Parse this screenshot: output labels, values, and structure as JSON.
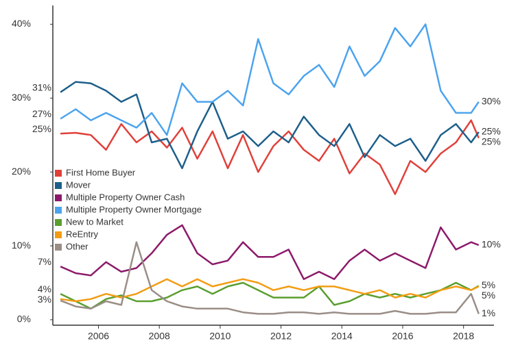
{
  "chart_data": {
    "type": "line",
    "x": [
      2004.75,
      2005.25,
      2005.75,
      2006.25,
      2006.75,
      2007.25,
      2007.75,
      2008.25,
      2008.75,
      2009.25,
      2009.75,
      2010.25,
      2010.75,
      2011.25,
      2011.75,
      2012.25,
      2012.75,
      2013.25,
      2013.75,
      2014.25,
      2014.75,
      2015.25,
      2015.75,
      2016.25,
      2016.75,
      2017.25,
      2017.75,
      2018.25,
      2018.5
    ],
    "xlim": [
      2004.5,
      2019.0
    ],
    "xticks": [
      2006,
      2008,
      2010,
      2012,
      2014,
      2016,
      2018
    ],
    "ylim": [
      0,
      40.5
    ],
    "yticks": [
      {
        "value": 0,
        "label": "0%"
      },
      {
        "value": 10,
        "label": "10%"
      },
      {
        "value": 20,
        "label": "20%"
      },
      {
        "value": 30,
        "label": "30%"
      },
      {
        "value": 40,
        "label": "40%"
      }
    ],
    "series": [
      {
        "name": "First Home Buyer",
        "color": "#e0403a",
        "values": [
          25.2,
          25.3,
          25.0,
          23.0,
          26.5,
          24.0,
          25.5,
          23.3,
          26.0,
          21.8,
          25.5,
          20.5,
          25.0,
          20.0,
          23.5,
          25.5,
          23.0,
          21.5,
          24.5,
          19.8,
          22.5,
          21.0,
          17.0,
          21.5,
          20.0,
          22.5,
          24.0,
          27.0,
          24.6
        ],
        "value_labels": [
          "25%",
          null,
          null,
          null,
          null,
          null,
          null,
          null,
          null,
          null,
          null,
          null,
          null,
          null,
          null,
          null,
          null,
          null,
          null,
          null,
          null,
          null,
          null,
          null,
          null,
          null,
          null,
          null,
          "25%"
        ]
      },
      {
        "name": "Mover",
        "color": "#1d5f8a",
        "values": [
          30.8,
          32.2,
          32.0,
          31.0,
          29.5,
          30.5,
          24.0,
          24.5,
          20.5,
          25.5,
          29.5,
          24.5,
          25.5,
          23.5,
          25.5,
          24.0,
          27.5,
          25.0,
          23.5,
          26.5,
          22.0,
          25.0,
          23.5,
          24.5,
          21.5,
          25.0,
          26.5,
          24.0,
          25.4
        ],
        "value_labels": [
          "31%",
          null,
          null,
          null,
          null,
          null,
          null,
          null,
          null,
          null,
          null,
          null,
          null,
          null,
          null,
          null,
          null,
          null,
          null,
          null,
          null,
          null,
          null,
          null,
          null,
          null,
          null,
          null,
          "25%"
        ]
      },
      {
        "name": "Multiple Property Owner Cash",
        "color": "#8c1a6a",
        "values": [
          7.2,
          6.3,
          6.0,
          7.8,
          6.5,
          7.0,
          9.0,
          11.5,
          12.8,
          9.0,
          7.5,
          8.0,
          10.5,
          8.5,
          8.5,
          9.5,
          5.5,
          6.5,
          5.5,
          8.0,
          9.5,
          8.0,
          9.0,
          8.0,
          7.0,
          12.5,
          9.5,
          10.5,
          10.1
        ],
        "value_labels": [
          "7%",
          null,
          null,
          null,
          null,
          null,
          null,
          null,
          null,
          null,
          null,
          null,
          null,
          null,
          null,
          null,
          null,
          null,
          null,
          null,
          null,
          null,
          null,
          null,
          null,
          null,
          null,
          null,
          "10%"
        ]
      },
      {
        "name": "Multiple Property Owner Mortgage",
        "color": "#4ba3ee",
        "values": [
          27.2,
          28.5,
          27.0,
          28.0,
          27.0,
          26.0,
          28.0,
          25.0,
          32.0,
          29.5,
          29.5,
          31.0,
          29.0,
          38.0,
          32.0,
          30.5,
          33.0,
          34.5,
          31.5,
          37.0,
          33.0,
          35.0,
          39.5,
          37.0,
          40.0,
          31.0,
          28.0,
          28.0,
          29.5
        ],
        "value_labels": [
          "27%",
          null,
          null,
          null,
          null,
          null,
          null,
          null,
          null,
          null,
          null,
          null,
          null,
          null,
          null,
          null,
          null,
          null,
          null,
          null,
          null,
          null,
          null,
          null,
          null,
          null,
          null,
          null,
          "30%"
        ]
      },
      {
        "name": "New to Market",
        "color": "#5a9e2f",
        "values": [
          3.5,
          2.5,
          1.5,
          2.8,
          3.3,
          2.5,
          2.5,
          3.0,
          4.0,
          4.5,
          3.5,
          4.5,
          5.0,
          4.0,
          3.0,
          3.0,
          3.0,
          4.5,
          2.0,
          2.5,
          3.5,
          3.0,
          3.5,
          3.0,
          3.5,
          4.0,
          5.0,
          4.0,
          4.6
        ],
        "value_labels": [
          "4%",
          null,
          null,
          null,
          null,
          null,
          null,
          null,
          null,
          null,
          null,
          null,
          null,
          null,
          null,
          null,
          null,
          null,
          null,
          null,
          null,
          null,
          null,
          null,
          null,
          null,
          null,
          null,
          "5%"
        ]
      },
      {
        "name": "ReEntry",
        "color": "#f39c12",
        "values": [
          2.8,
          2.5,
          2.8,
          3.5,
          3.0,
          3.5,
          4.5,
          5.5,
          4.5,
          5.5,
          4.5,
          5.0,
          5.5,
          5.0,
          4.0,
          4.5,
          4.0,
          4.5,
          4.5,
          4.0,
          3.5,
          4.0,
          3.0,
          3.5,
          3.0,
          4.0,
          4.5,
          4.0,
          4.5
        ],
        "value_labels": [
          null,
          null,
          null,
          null,
          null,
          null,
          null,
          null,
          null,
          null,
          null,
          null,
          null,
          null,
          null,
          null,
          null,
          null,
          null,
          null,
          null,
          null,
          null,
          null,
          null,
          null,
          null,
          null,
          "5%"
        ]
      },
      {
        "name": "Other",
        "color": "#9a8d86",
        "values": [
          2.6,
          1.8,
          1.5,
          2.5,
          2.0,
          10.5,
          4.0,
          2.5,
          1.8,
          1.5,
          1.5,
          1.5,
          1.0,
          0.8,
          0.8,
          1.0,
          1.0,
          0.8,
          1.0,
          0.8,
          0.8,
          0.8,
          1.2,
          0.8,
          0.8,
          1.0,
          1.0,
          3.5,
          0.8
        ],
        "value_labels": [
          "3%",
          null,
          null,
          null,
          null,
          null,
          null,
          null,
          null,
          null,
          null,
          null,
          null,
          null,
          null,
          null,
          null,
          null,
          null,
          null,
          null,
          null,
          null,
          null,
          null,
          null,
          null,
          null,
          "1%"
        ]
      }
    ]
  }
}
